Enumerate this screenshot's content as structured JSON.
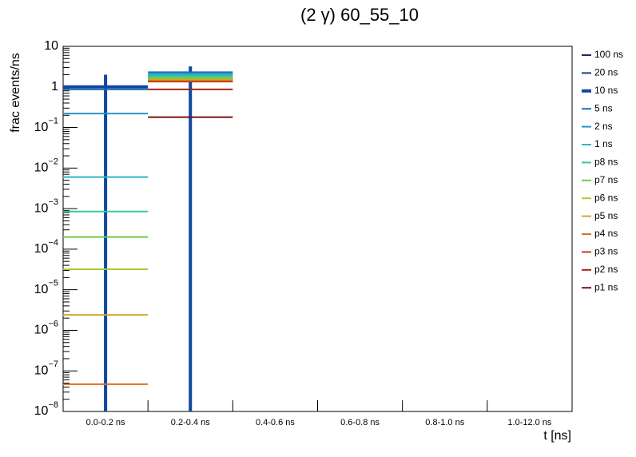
{
  "chart_data": {
    "type": "histogram",
    "title": "(2 γ) 60_55_10",
    "x_label": "t [ns]",
    "y_label": "frac events/ns",
    "log_y": true,
    "categories": [
      "0.0-0.2 ns",
      "0.2-0.4 ns",
      "0.4-0.6 ns",
      "0.6-0.8 ns",
      "0.8-1.0 ns",
      "1.0-12.0 ns"
    ],
    "ylim": [
      1e-08,
      10
    ],
    "yticks": [
      {
        "value": 1e-08,
        "label": "10−8"
      },
      {
        "value": 1e-07,
        "label": "10−7"
      },
      {
        "value": 1e-06,
        "label": "10−6"
      },
      {
        "value": 1e-05,
        "label": "10−5"
      },
      {
        "value": 0.0001,
        "label": "10−4"
      },
      {
        "value": 0.001,
        "label": "10−3"
      },
      {
        "value": 0.01,
        "label": "10−2"
      },
      {
        "value": 0.1,
        "label": "10−1"
      },
      1,
      10
    ],
    "series": [
      {
        "name": "100 ns",
        "color": "#1b2a6b",
        "values": [
          null,
          1.5,
          null,
          null,
          null,
          null
        ]
      },
      {
        "name": "20 ns",
        "color": "#22398f",
        "values": [
          null,
          1.5,
          null,
          null,
          null,
          null
        ]
      },
      {
        "name": "10 ns",
        "color": "#0f47a0",
        "values": [
          1.0,
          1.6,
          null,
          null,
          null,
          null
        ],
        "errors": [
          1.0,
          1.6,
          null,
          null,
          null,
          null
        ]
      },
      {
        "name": "5 ns",
        "color": "#1f6fb5",
        "values": [
          0.87,
          2.3,
          null,
          null,
          null,
          null
        ]
      },
      {
        "name": "2 ns",
        "color": "#2697c7",
        "values": [
          0.22,
          2.1,
          null,
          null,
          null,
          null
        ]
      },
      {
        "name": "1 ns",
        "color": "#2bb8c4",
        "values": [
          0.006,
          1.95,
          null,
          null,
          null,
          null
        ]
      },
      {
        "name": "p8 ns",
        "color": "#3cc79a",
        "values": [
          0.00085,
          1.8,
          null,
          null,
          null,
          null
        ]
      },
      {
        "name": "p7 ns",
        "color": "#6ccb4e",
        "values": [
          0.0002,
          1.7,
          null,
          null,
          null,
          null
        ]
      },
      {
        "name": "p6 ns",
        "color": "#a6cf2c",
        "values": [
          3.2e-05,
          1.55,
          null,
          null,
          null,
          null
        ]
      },
      {
        "name": "p5 ns",
        "color": "#d1a926",
        "values": [
          2.4e-06,
          1.5,
          null,
          null,
          null,
          null
        ]
      },
      {
        "name": "p4 ns",
        "color": "#e0711a",
        "values": [
          4.7e-08,
          1.4,
          null,
          null,
          null,
          null
        ]
      },
      {
        "name": "p3 ns",
        "color": "#c83e14",
        "values": [
          null,
          1.35,
          null,
          null,
          null,
          null
        ]
      },
      {
        "name": "p2 ns",
        "color": "#a8231a",
        "values": [
          null,
          0.87,
          null,
          null,
          null,
          null
        ]
      },
      {
        "name": "p1 ns",
        "color": "#7a1010",
        "values": [
          null,
          0.18,
          null,
          null,
          null,
          null
        ]
      }
    ]
  }
}
